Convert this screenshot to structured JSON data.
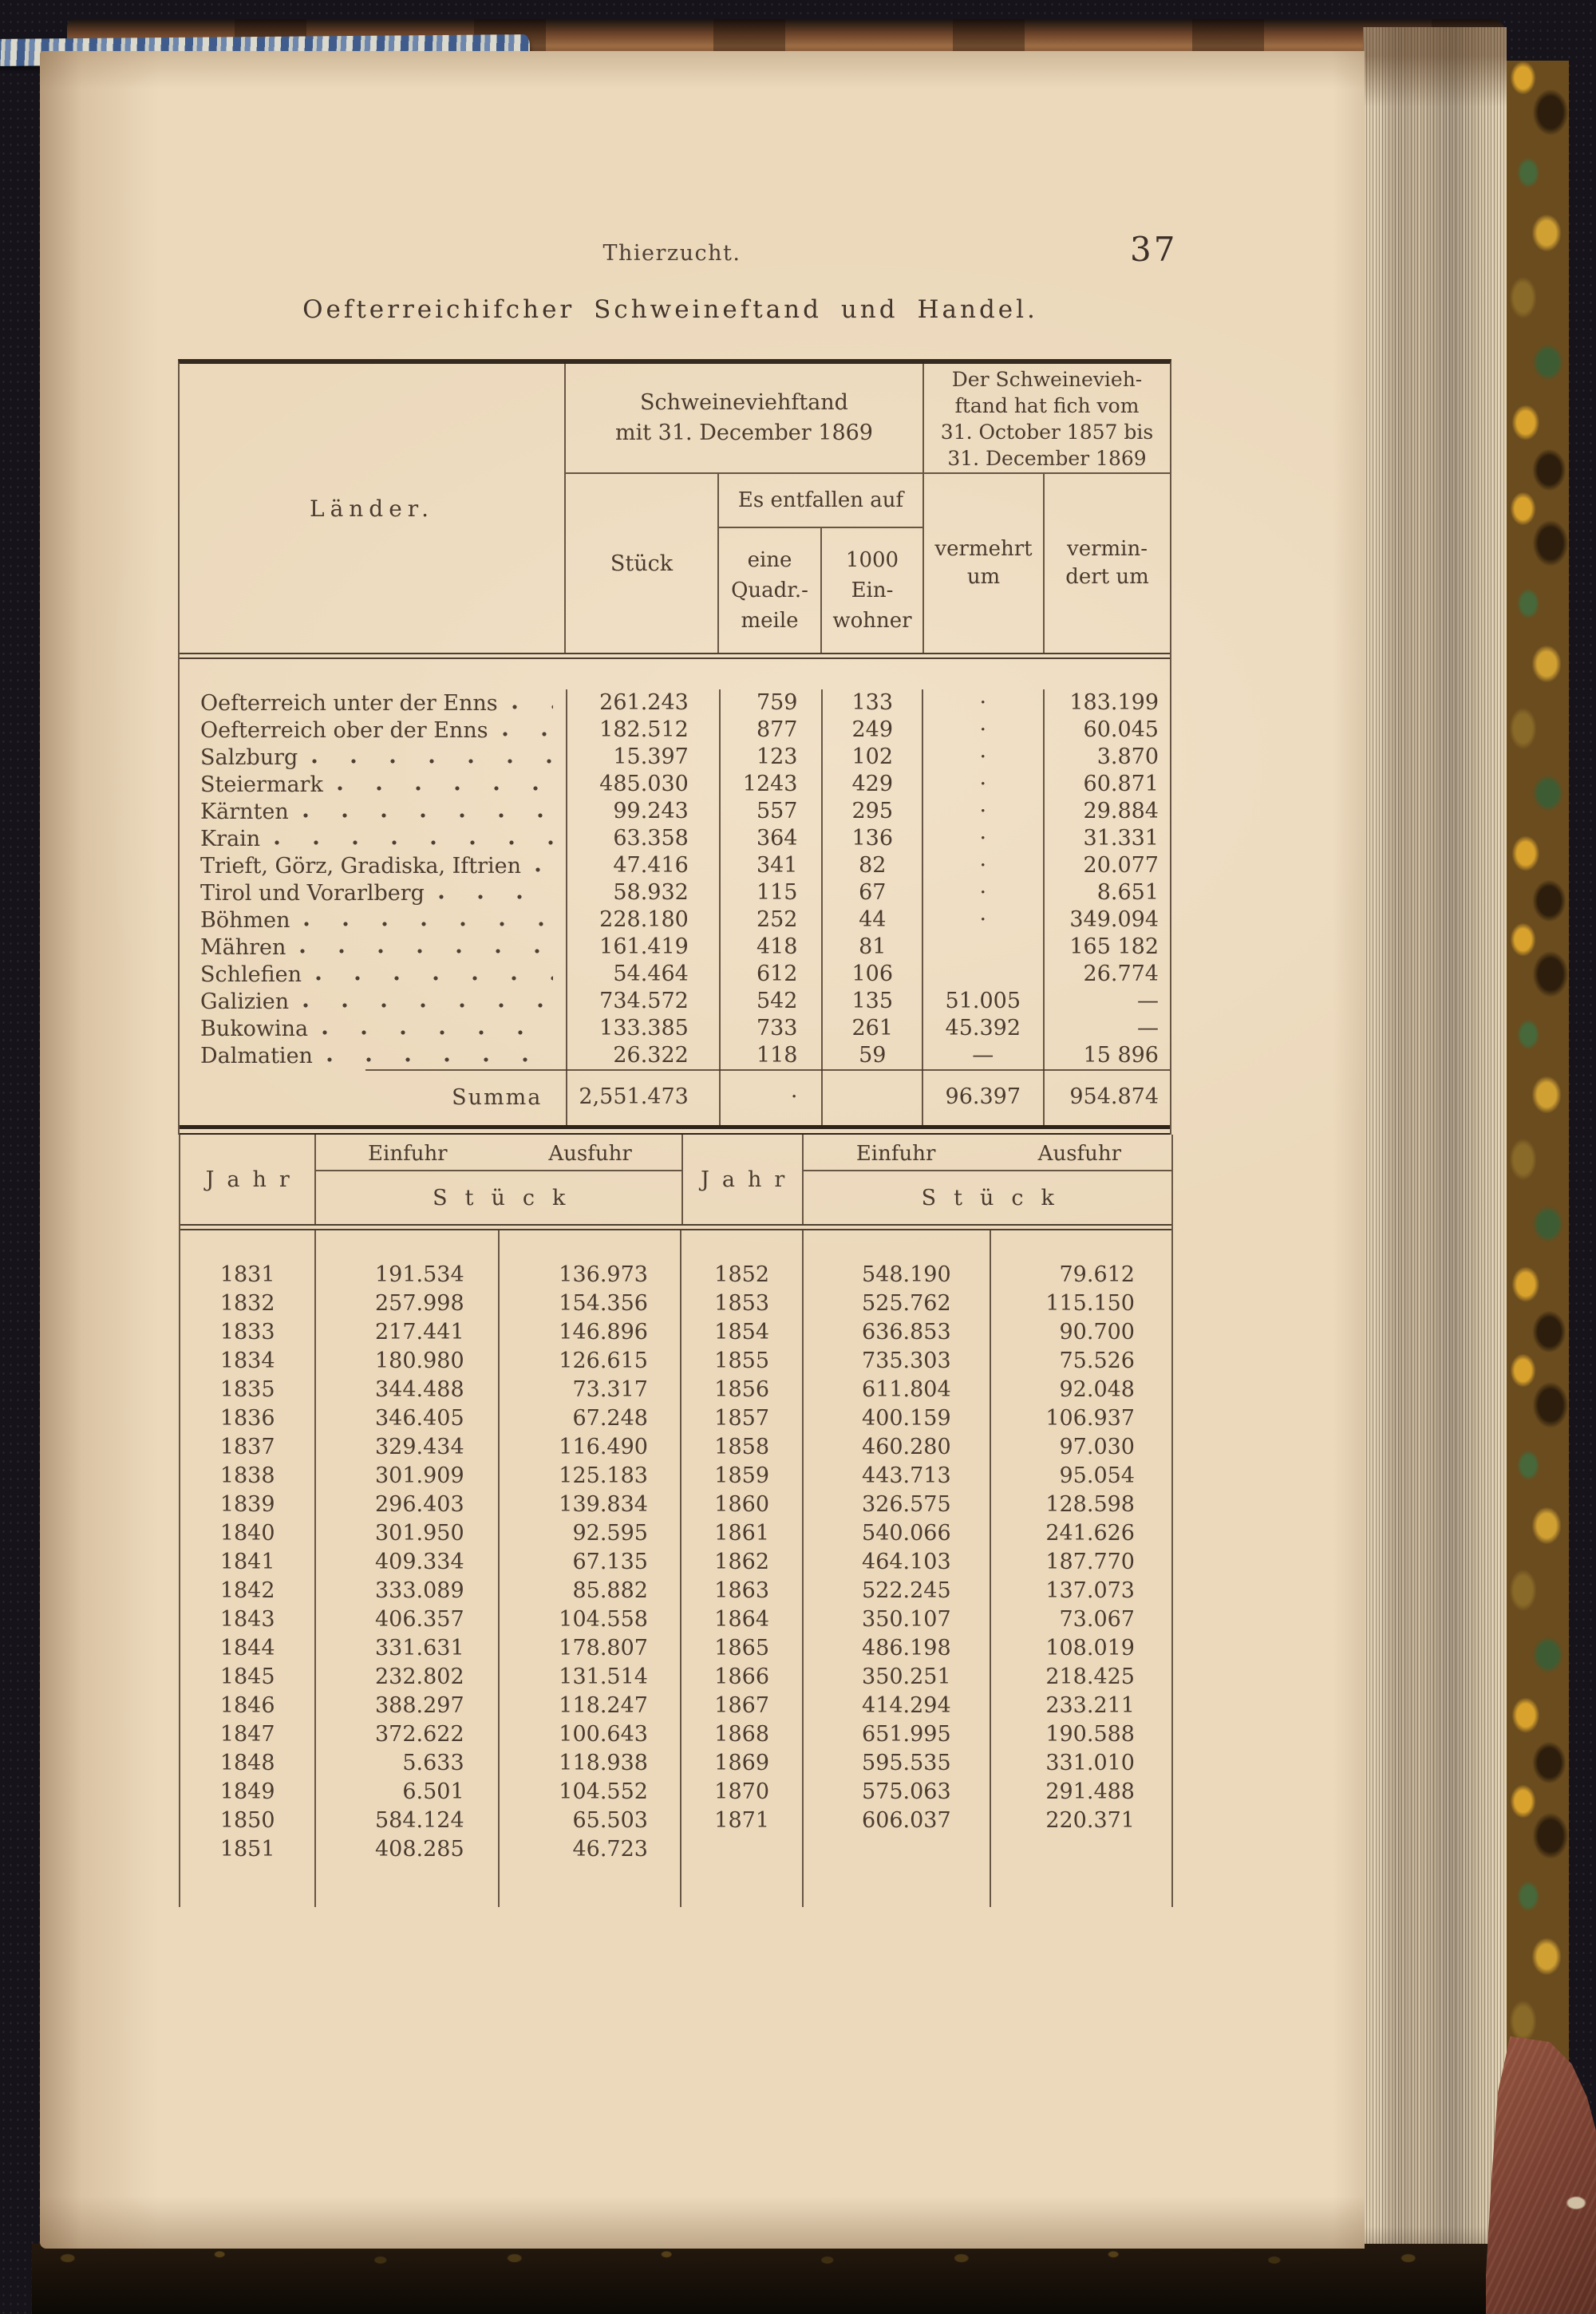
{
  "page": {
    "running_header": "Thierzucht.",
    "page_number": "37",
    "title": "Oefterreichifcher Schweineftand und Handel."
  },
  "table1": {
    "col_laender": "Länder.",
    "stand_l1": "Schweineviehftand",
    "stand_l2": "mit 31. December 1869",
    "change_l1": "Der Schweinevieh-",
    "change_l2": "ftand hat fich vom",
    "change_l3": "31. October 1857 bis",
    "change_l4": "31. December 1869",
    "es_entfallen": "Es entfallen auf",
    "col_stueck": "Stück",
    "qm_l1": "eine",
    "qm_l2": "Quadr.-",
    "qm_l3": "meile",
    "einw_l1": "1000",
    "einw_l2": "Ein-",
    "einw_l3": "wohner",
    "verm_l1": "vermehrt",
    "verm_l2": "um",
    "vermd_l1": "vermin-",
    "vermd_l2": "dert um",
    "rows": [
      {
        "land": "Oefterreich unter der Enns",
        "stueck": "261.243",
        "qm": "759",
        "einw": "133",
        "vermehrt": "·",
        "vermindert": "183.199"
      },
      {
        "land": "Oefterreich ober der Enns",
        "stueck": "182.512",
        "qm": "877",
        "einw": "249",
        "vermehrt": "·",
        "vermindert": "60.045"
      },
      {
        "land": "Salzburg",
        "stueck": "15.397",
        "qm": "123",
        "einw": "102",
        "vermehrt": "·",
        "vermindert": "3.870"
      },
      {
        "land": "Steiermark",
        "stueck": "485.030",
        "qm": "1243",
        "einw": "429",
        "vermehrt": "·",
        "vermindert": "60.871"
      },
      {
        "land": "Kärnten",
        "stueck": "99.243",
        "qm": "557",
        "einw": "295",
        "vermehrt": "·",
        "vermindert": "29.884"
      },
      {
        "land": "Krain",
        "stueck": "63.358",
        "qm": "364",
        "einw": "136",
        "vermehrt": "·",
        "vermindert": "31.331"
      },
      {
        "land": "Trieft, Görz, Gradiska, Iftrien",
        "stueck": "47.416",
        "qm": "341",
        "einw": "82",
        "vermehrt": "·",
        "vermindert": "20.077"
      },
      {
        "land": "Tirol und Vorarlberg",
        "stueck": "58.932",
        "qm": "115",
        "einw": "67",
        "vermehrt": "·",
        "vermindert": "8.651"
      },
      {
        "land": "Böhmen",
        "stueck": "228.180",
        "qm": "252",
        "einw": "44",
        "vermehrt": "·",
        "vermindert": "349.094"
      },
      {
        "land": "Mähren",
        "stueck": "161.419",
        "qm": "418",
        "einw": "81",
        "vermehrt": "",
        "vermindert": "165 182"
      },
      {
        "land": "Schlefien",
        "stueck": "54.464",
        "qm": "612",
        "einw": "106",
        "vermehrt": "",
        "vermindert": "26.774"
      },
      {
        "land": "Galizien",
        "stueck": "734.572",
        "qm": "542",
        "einw": "135",
        "vermehrt": "51.005",
        "vermindert": "—"
      },
      {
        "land": "Bukowina",
        "stueck": "133.385",
        "qm": "733",
        "einw": "261",
        "vermehrt": "45.392",
        "vermindert": "—"
      },
      {
        "land": "Dalmatien",
        "stueck": "26.322",
        "qm": "118",
        "einw": "59",
        "vermehrt": "—",
        "vermindert": "15 896"
      }
    ],
    "summa_label": "Summa",
    "summa": {
      "stueck": "2,551.473",
      "qm": "·",
      "einw": "",
      "vermehrt": "96.397",
      "vermindert": "954.874"
    }
  },
  "table2": {
    "jahr_label": "Jahr",
    "einfuhr_label": "Einfuhr",
    "ausfuhr_label": "Ausfuhr",
    "stueck_label": "Stück",
    "left_rows": [
      {
        "jahr": "1831",
        "einfuhr": "191.534",
        "ausfuhr": "136.973"
      },
      {
        "jahr": "1832",
        "einfuhr": "257.998",
        "ausfuhr": "154.356"
      },
      {
        "jahr": "1833",
        "einfuhr": "217.441",
        "ausfuhr": "146.896"
      },
      {
        "jahr": "1834",
        "einfuhr": "180.980",
        "ausfuhr": "126.615"
      },
      {
        "jahr": "1835",
        "einfuhr": "344.488",
        "ausfuhr": "73.317"
      },
      {
        "jahr": "1836",
        "einfuhr": "346.405",
        "ausfuhr": "67.248"
      },
      {
        "jahr": "1837",
        "einfuhr": "329.434",
        "ausfuhr": "116.490"
      },
      {
        "jahr": "1838",
        "einfuhr": "301.909",
        "ausfuhr": "125.183"
      },
      {
        "jahr": "1839",
        "einfuhr": "296.403",
        "ausfuhr": "139.834"
      },
      {
        "jahr": "1840",
        "einfuhr": "301.950",
        "ausfuhr": "92.595"
      },
      {
        "jahr": "1841",
        "einfuhr": "409.334",
        "ausfuhr": "67.135"
      },
      {
        "jahr": "1842",
        "einfuhr": "333.089",
        "ausfuhr": "85.882"
      },
      {
        "jahr": "1843",
        "einfuhr": "406.357",
        "ausfuhr": "104.558"
      },
      {
        "jahr": "1844",
        "einfuhr": "331.631",
        "ausfuhr": "178.807"
      },
      {
        "jahr": "1845",
        "einfuhr": "232.802",
        "ausfuhr": "131.514"
      },
      {
        "jahr": "1846",
        "einfuhr": "388.297",
        "ausfuhr": "118.247"
      },
      {
        "jahr": "1847",
        "einfuhr": "372.622",
        "ausfuhr": "100.643"
      },
      {
        "jahr": "1848",
        "einfuhr": "5.633",
        "ausfuhr": "118.938"
      },
      {
        "jahr": "1849",
        "einfuhr": "6.501",
        "ausfuhr": "104.552"
      },
      {
        "jahr": "1850",
        "einfuhr": "584.124",
        "ausfuhr": "65.503"
      },
      {
        "jahr": "1851",
        "einfuhr": "408.285",
        "ausfuhr": "46.723"
      }
    ],
    "right_rows": [
      {
        "jahr": "1852",
        "einfuhr": "548.190",
        "ausfuhr": "79.612"
      },
      {
        "jahr": "1853",
        "einfuhr": "525.762",
        "ausfuhr": "115.150"
      },
      {
        "jahr": "1854",
        "einfuhr": "636.853",
        "ausfuhr": "90.700"
      },
      {
        "jahr": "1855",
        "einfuhr": "735.303",
        "ausfuhr": "75.526"
      },
      {
        "jahr": "1856",
        "einfuhr": "611.804",
        "ausfuhr": "92.048"
      },
      {
        "jahr": "1857",
        "einfuhr": "400.159",
        "ausfuhr": "106.937"
      },
      {
        "jahr": "1858",
        "einfuhr": "460.280",
        "ausfuhr": "97.030"
      },
      {
        "jahr": "1859",
        "einfuhr": "443.713",
        "ausfuhr": "95.054"
      },
      {
        "jahr": "1860",
        "einfuhr": "326.575",
        "ausfuhr": "128.598"
      },
      {
        "jahr": "1861",
        "einfuhr": "540.066",
        "ausfuhr": "241.626"
      },
      {
        "jahr": "1862",
        "einfuhr": "464.103",
        "ausfuhr": "187.770"
      },
      {
        "jahr": "1863",
        "einfuhr": "522.245",
        "ausfuhr": "137.073"
      },
      {
        "jahr": "1864",
        "einfuhr": "350.107",
        "ausfuhr": "73.067"
      },
      {
        "jahr": "1865",
        "einfuhr": "486.198",
        "ausfuhr": "108.019"
      },
      {
        "jahr": "1866",
        "einfuhr": "350.251",
        "ausfuhr": "218.425"
      },
      {
        "jahr": "1867",
        "einfuhr": "414.294",
        "ausfuhr": "233.211"
      },
      {
        "jahr": "1868",
        "einfuhr": "651.995",
        "ausfuhr": "190.588"
      },
      {
        "jahr": "1869",
        "einfuhr": "595.535",
        "ausfuhr": "331.010"
      },
      {
        "jahr": "1870",
        "einfuhr": "575.063",
        "ausfuhr": "291.488"
      },
      {
        "jahr": "1871",
        "einfuhr": "606.037",
        "ausfuhr": "220.371"
      }
    ]
  }
}
